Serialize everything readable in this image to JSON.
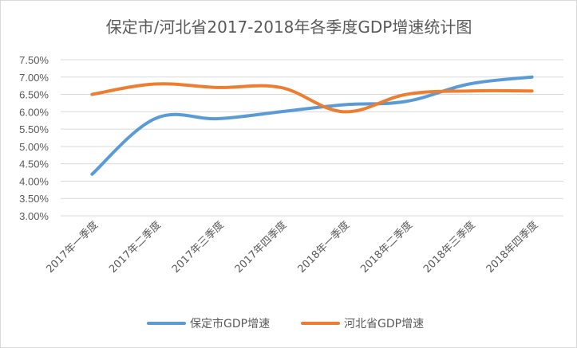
{
  "chart_data": {
    "type": "line",
    "title": "保定市/河北省2017-2018年各季度GDP增速统计图",
    "xlabel": "",
    "ylabel": "",
    "categories": [
      "2017年一季度",
      "2017年二季度",
      "2017年三季度",
      "2017年四季度",
      "2018年一季度",
      "2018年二季度",
      "2018年三季度",
      "2018年四季度"
    ],
    "ylim": [
      3.0,
      7.5
    ],
    "yticks": [
      "3.00%",
      "3.50%",
      "4.00%",
      "4.50%",
      "5.00%",
      "5.50%",
      "6.00%",
      "6.50%",
      "7.00%",
      "7.50%"
    ],
    "grid": true,
    "legend": "bottom",
    "series": [
      {
        "name": "保定市GDP增速",
        "color": "#5b9bd5",
        "values": [
          4.2,
          5.8,
          5.8,
          6.0,
          6.2,
          6.3,
          6.8,
          7.0
        ]
      },
      {
        "name": "河北省GDP增速",
        "color": "#ed7d31",
        "values": [
          6.5,
          6.8,
          6.7,
          6.7,
          6.0,
          6.5,
          6.6,
          6.6
        ]
      }
    ]
  }
}
